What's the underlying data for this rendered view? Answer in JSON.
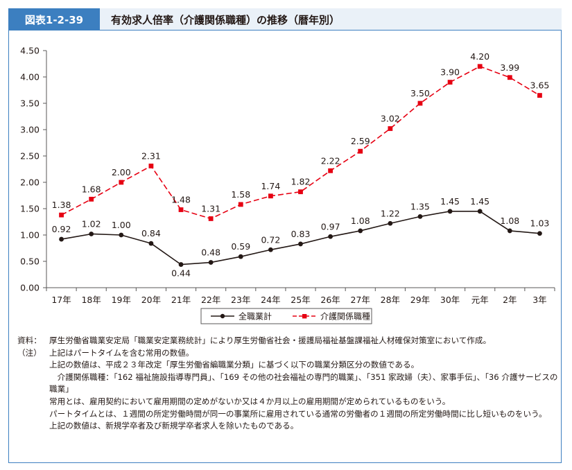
{
  "header": {
    "fig_label": "図表1-2-39",
    "title": "有効求人倍率（介護関係職種）の推移（暦年別）"
  },
  "chart_data": {
    "type": "line",
    "title": "",
    "xlabel": "",
    "ylabel": "",
    "ylim": [
      0,
      4.5
    ],
    "yticks": [
      "0.00",
      "0.50",
      "1.00",
      "1.50",
      "2.00",
      "2.50",
      "3.00",
      "3.50",
      "4.00",
      "4.50"
    ],
    "categories": [
      "17年",
      "18年",
      "19年",
      "20年",
      "21年",
      "22年",
      "23年",
      "24年",
      "25年",
      "26年",
      "27年",
      "28年",
      "29年",
      "30年",
      "元年",
      "2年",
      "3年"
    ],
    "series": [
      {
        "name": "全職業計",
        "color": "#231815",
        "style": "solid",
        "marker": "circle",
        "values": [
          0.92,
          1.02,
          1.0,
          0.84,
          0.44,
          0.48,
          0.59,
          0.72,
          0.83,
          0.97,
          1.08,
          1.22,
          1.35,
          1.45,
          1.45,
          1.08,
          1.03
        ],
        "labels": [
          "0.92",
          "1.02",
          "1.00",
          "0.84",
          "0.44",
          "0.48",
          "0.59",
          "0.72",
          "0.83",
          "0.97",
          "1.08",
          "1.22",
          "1.35",
          "1.45",
          "1.45",
          "1.08",
          "1.03"
        ]
      },
      {
        "name": "介護関係職種",
        "color": "#e60012",
        "style": "dashed",
        "marker": "square",
        "values": [
          1.38,
          1.68,
          2.0,
          2.31,
          1.48,
          1.31,
          1.58,
          1.74,
          1.82,
          2.22,
          2.59,
          3.02,
          3.5,
          3.9,
          4.2,
          3.99,
          3.65
        ],
        "labels": [
          "1.38",
          "1.68",
          "2.00",
          "2.31",
          "1.48",
          "1.31",
          "1.58",
          "1.74",
          "1.82",
          "2.22",
          "2.59",
          "3.02",
          "3.50",
          "3.90",
          "4.20",
          "3.99",
          "3.65"
        ]
      }
    ],
    "legend_position": "bottom-center",
    "grid": false
  },
  "notes": [
    {
      "tag": "資料：",
      "text": "厚生労働省職業安定局「職業安定業務統計」により厚生労働省社会・援護局福祉基盤課福祉人材確保対策室において作成。"
    },
    {
      "tag": "（注）",
      "text": "上記はパートタイムを含む常用の数値。"
    },
    {
      "tag": "",
      "text": "上記の数値は、平成２３年改定「厚生労働省編職業分類」に基づく以下の職業分類区分の数値である。"
    },
    {
      "tag": "",
      "text": "　介護関係職種：「162 福祉施設指導専門員」、「169 その他の社会福祉の専門的職業」、「351 家政婦（夫）、家事手伝」、「36 介護サービスの職業」"
    },
    {
      "tag": "",
      "text": "常用とは、雇用契約において雇用期間の定めがないか又は４か月以上の雇用期間が定められているものをいう。"
    },
    {
      "tag": "",
      "text": "パートタイムとは、１週間の所定労働時間が同一の事業所に雇用されている通常の労働者の１週間の所定労働時間に比し短いものをいう。"
    },
    {
      "tag": "",
      "text": "上記の数値は、新規学卒者及び新規学卒者求人を除いたものである。"
    }
  ]
}
